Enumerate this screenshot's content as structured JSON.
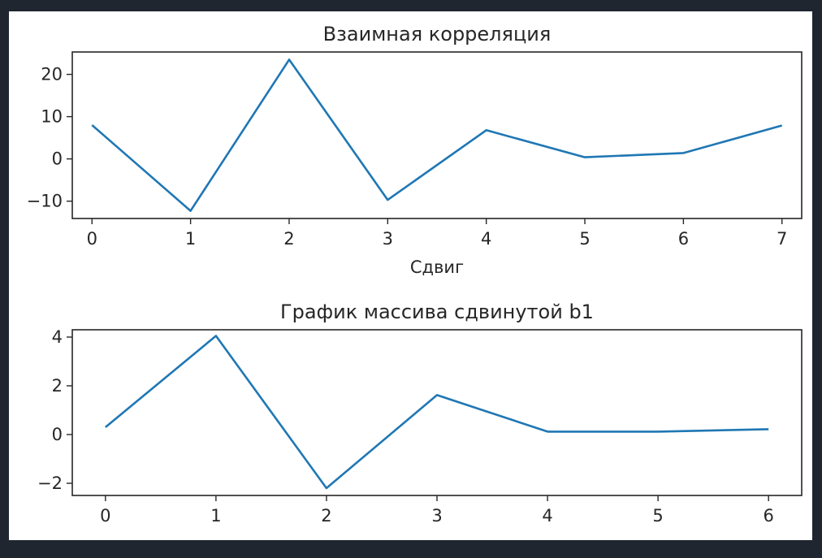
{
  "colors": {
    "background": "#1f2630",
    "figure": "#ffffff",
    "line": "#1f77b4",
    "axes": "#262626"
  },
  "chart_data": [
    {
      "type": "line",
      "title": "Взаимная корреляция",
      "xlabel": "Сдвиг",
      "ylabel": "",
      "x": [
        0,
        1,
        2,
        3,
        4,
        5,
        6,
        7
      ],
      "series": [
        {
          "values": [
            8,
            -12.3,
            23.5,
            -9.7,
            6.8,
            0.4,
            1.4,
            7.9
          ]
        }
      ],
      "xticks": [
        0,
        1,
        2,
        3,
        4,
        5,
        6,
        7
      ],
      "yticks": [
        -10,
        0,
        10,
        20
      ],
      "xlim": [
        -0.2,
        7.2
      ],
      "ylim": [
        -14.1,
        25.3
      ],
      "grid": false
    },
    {
      "type": "line",
      "title": "График массива сдвинутой b1",
      "xlabel": "",
      "ylabel": "",
      "x": [
        0,
        1,
        2,
        3,
        4,
        5,
        6
      ],
      "series": [
        {
          "values": [
            0.3,
            4.05,
            -2.2,
            1.62,
            0.12,
            0.12,
            0.22
          ]
        }
      ],
      "xticks": [
        0,
        1,
        2,
        3,
        4,
        5,
        6
      ],
      "yticks": [
        -2,
        0,
        2,
        4
      ],
      "xlim": [
        -0.3,
        6.3
      ],
      "ylim": [
        -2.5,
        4.3
      ],
      "grid": false
    }
  ]
}
